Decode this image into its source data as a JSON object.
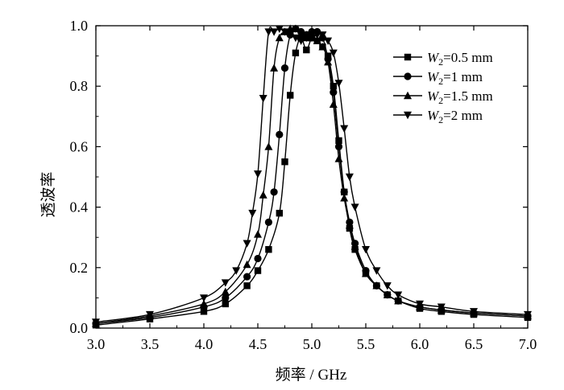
{
  "chart_data": {
    "type": "line",
    "xlabel": "频率 / GHz",
    "ylabel": "透波率",
    "xlim": [
      3.0,
      7.0
    ],
    "ylim": [
      0.0,
      1.0
    ],
    "x_ticks": [
      "3.0",
      "3.5",
      "4.0",
      "4.5",
      "5.0",
      "5.5",
      "6.0",
      "6.5",
      "7.0"
    ],
    "y_ticks": [
      "0.0",
      "0.2",
      "0.4",
      "0.6",
      "0.8",
      "1.0"
    ],
    "grid": false,
    "legend_position": "top-right",
    "series": [
      {
        "name": "W2=0.5 mm",
        "legend_var": "W",
        "legend_sub": "2",
        "legend_rest": "=0.5 mm",
        "marker": "square",
        "x": [
          3.0,
          3.5,
          4.0,
          4.2,
          4.4,
          4.5,
          4.6,
          4.7,
          4.75,
          4.8,
          4.85,
          4.9,
          4.95,
          5.0,
          5.05,
          5.1,
          5.15,
          5.2,
          5.25,
          5.3,
          5.35,
          5.4,
          5.5,
          5.6,
          5.7,
          5.8,
          6.0,
          6.2,
          6.5,
          7.0
        ],
        "y": [
          0.01,
          0.03,
          0.055,
          0.08,
          0.14,
          0.19,
          0.26,
          0.38,
          0.55,
          0.77,
          0.91,
          0.96,
          0.92,
          0.96,
          0.95,
          0.93,
          0.9,
          0.8,
          0.62,
          0.45,
          0.33,
          0.26,
          0.18,
          0.14,
          0.11,
          0.09,
          0.065,
          0.055,
          0.045,
          0.035
        ]
      },
      {
        "name": "W2=1 mm",
        "legend_var": "W",
        "legend_sub": "2",
        "legend_rest": "=1 mm",
        "marker": "circle",
        "x": [
          3.0,
          3.5,
          4.0,
          4.2,
          4.4,
          4.5,
          4.6,
          4.65,
          4.7,
          4.75,
          4.8,
          4.85,
          4.9,
          4.95,
          5.0,
          5.05,
          5.1,
          5.15,
          5.2,
          5.25,
          5.3,
          5.35,
          5.4,
          5.5,
          5.6,
          5.7,
          5.8,
          6.0,
          6.2,
          6.5,
          7.0
        ],
        "y": [
          0.015,
          0.035,
          0.07,
          0.1,
          0.17,
          0.23,
          0.35,
          0.45,
          0.64,
          0.86,
          0.97,
          0.99,
          0.98,
          0.97,
          0.98,
          0.98,
          0.96,
          0.89,
          0.78,
          0.6,
          0.45,
          0.35,
          0.28,
          0.19,
          0.14,
          0.11,
          0.09,
          0.07,
          0.06,
          0.05,
          0.04
        ]
      },
      {
        "name": "W2=1.5 mm",
        "legend_var": "W",
        "legend_sub": "2",
        "legend_rest": "=1.5 mm",
        "marker": "triangle-up",
        "x": [
          3.0,
          3.5,
          4.0,
          4.2,
          4.4,
          4.5,
          4.55,
          4.6,
          4.65,
          4.7,
          4.75,
          4.8,
          4.85,
          4.9,
          4.95,
          5.0,
          5.05,
          5.1,
          5.15,
          5.2,
          5.25,
          5.3,
          5.35,
          5.4,
          5.5,
          5.6,
          5.7,
          5.8,
          6.0,
          6.2,
          6.5,
          7.0
        ],
        "y": [
          0.015,
          0.04,
          0.08,
          0.12,
          0.21,
          0.31,
          0.44,
          0.6,
          0.86,
          0.96,
          0.98,
          0.99,
          0.99,
          0.97,
          0.96,
          0.96,
          0.95,
          0.93,
          0.88,
          0.74,
          0.56,
          0.43,
          0.34,
          0.27,
          0.18,
          0.14,
          0.11,
          0.09,
          0.07,
          0.06,
          0.05,
          0.04
        ]
      },
      {
        "name": "W2=2 mm",
        "legend_var": "W",
        "legend_sub": "2",
        "legend_rest": "=2 mm",
        "marker": "triangle-down",
        "x": [
          3.0,
          3.5,
          4.0,
          4.2,
          4.3,
          4.4,
          4.45,
          4.5,
          4.55,
          4.6,
          4.65,
          4.7,
          4.75,
          4.8,
          4.85,
          4.9,
          4.95,
          5.0,
          5.05,
          5.1,
          5.15,
          5.2,
          5.25,
          5.3,
          5.35,
          5.4,
          5.5,
          5.6,
          5.7,
          5.8,
          6.0,
          6.2,
          6.5,
          7.0
        ],
        "y": [
          0.02,
          0.045,
          0.1,
          0.15,
          0.19,
          0.28,
          0.38,
          0.51,
          0.76,
          0.98,
          0.98,
          0.99,
          0.98,
          0.97,
          0.96,
          0.95,
          0.96,
          0.96,
          0.97,
          0.97,
          0.95,
          0.91,
          0.81,
          0.66,
          0.5,
          0.4,
          0.26,
          0.19,
          0.14,
          0.11,
          0.08,
          0.07,
          0.055,
          0.045
        ]
      }
    ]
  }
}
